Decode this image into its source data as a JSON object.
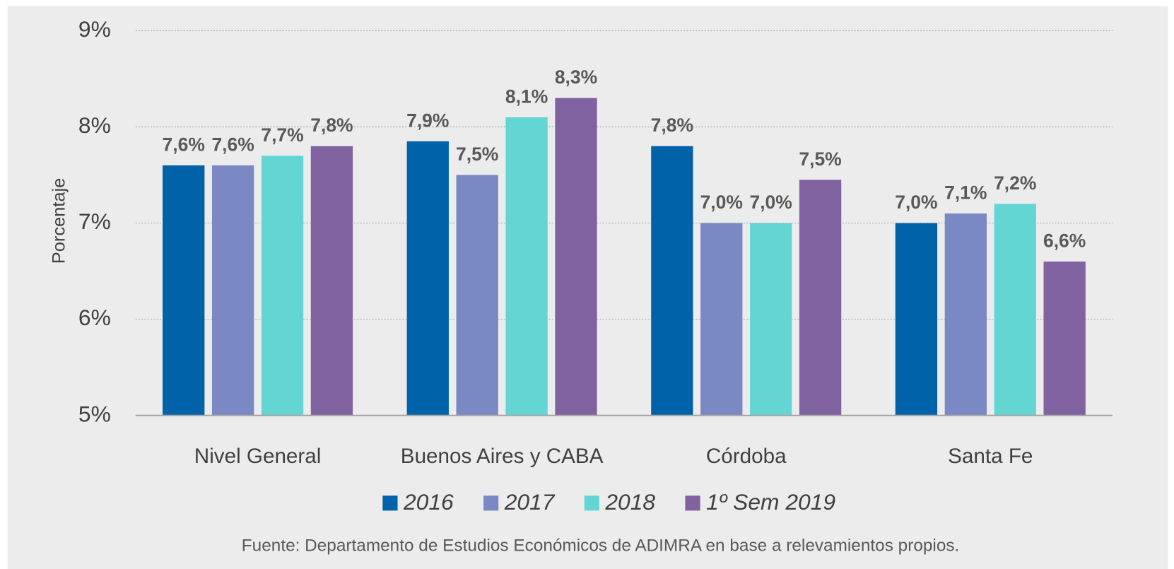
{
  "chart_data": {
    "type": "bar",
    "y_label": "Porcentaje",
    "categories": [
      "Nivel General",
      "Buenos Aires y CABA",
      "Córdoba",
      "Santa Fe"
    ],
    "series": [
      {
        "name": "2016",
        "color": "#0062a8",
        "values": [
          7.6,
          7.85,
          7.8,
          7.0
        ],
        "value_labels": [
          "7,6%",
          "7,9%",
          "7,8%",
          "7,0%"
        ]
      },
      {
        "name": "2017",
        "color": "#7a88c4",
        "values": [
          7.6,
          7.5,
          7.0,
          7.1
        ],
        "value_labels": [
          "7,6%",
          "7,5%",
          "7,0%",
          "7,1%"
        ]
      },
      {
        "name": "2018",
        "color": "#63d6d3",
        "values": [
          7.7,
          8.1,
          7.0,
          7.2
        ],
        "value_labels": [
          "7,7%",
          "8,1%",
          "7,0%",
          "7,2%"
        ]
      },
      {
        "name": "1º Sem 2019",
        "color": "#8062a0",
        "values": [
          7.8,
          8.3,
          7.45,
          6.6
        ],
        "value_labels": [
          "7,8%",
          "8,3%",
          "7,5%",
          "6,6%"
        ]
      }
    ],
    "ylim": [
      5,
      9
    ],
    "yticks": [
      {
        "value": 5,
        "label": "5%"
      },
      {
        "value": 6,
        "label": "6%"
      },
      {
        "value": 7,
        "label": "7%"
      },
      {
        "value": 8,
        "label": "8%"
      },
      {
        "value": 9,
        "label": "9%"
      }
    ],
    "grid": true,
    "legend": "bottom",
    "source": "Fuente: Departamento de Estudios Económicos de ADIMRA  en base a relevamientos propios."
  }
}
